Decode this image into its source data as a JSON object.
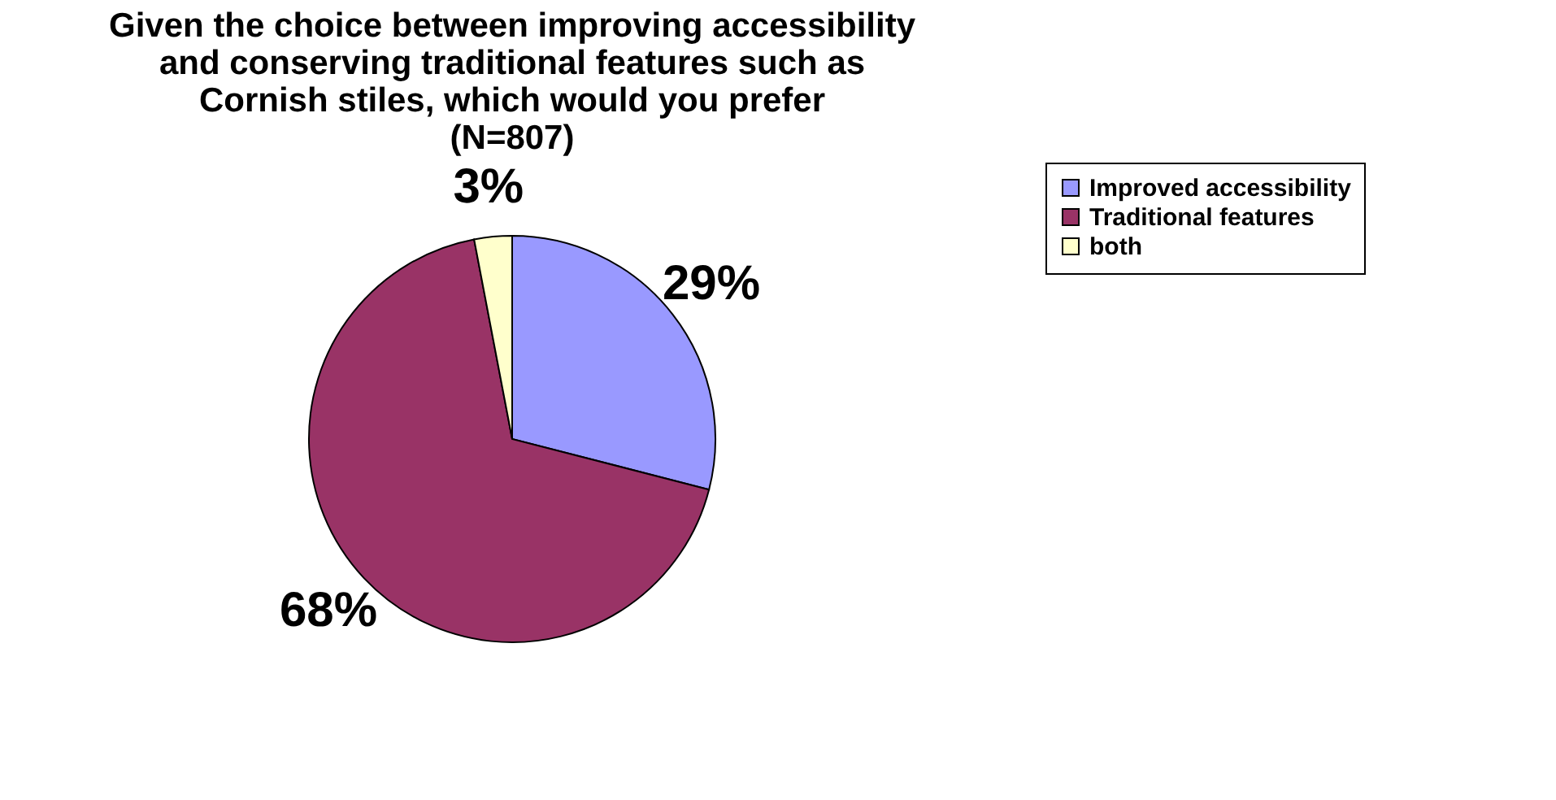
{
  "chart_data": {
    "type": "pie",
    "title": "Given the choice between improving accessibility\nand conserving traditional features such as\nCornish stiles, which would you prefer\n(N=807)",
    "categories": [
      "Improved accessibility",
      "Traditional features",
      "both"
    ],
    "values": [
      29,
      68,
      3
    ],
    "colors": [
      "#9999ff",
      "#993366",
      "#ffffcc"
    ],
    "value_labels": [
      "29%",
      "68%",
      "3%"
    ],
    "legend": "right"
  }
}
